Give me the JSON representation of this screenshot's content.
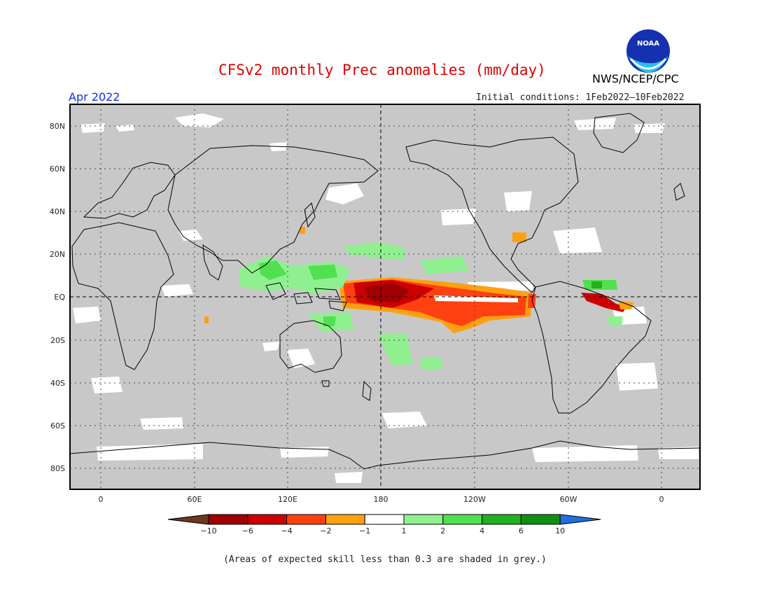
{
  "title": "CFSv2 monthly Prec anomalies (mm/day)",
  "agency": "NWS/NCEP/CPC",
  "logo_text": "NOAA",
  "month": "Apr 2022",
  "initial_conditions": "Initial conditions: 1Feb2022–10Feb2022",
  "footnote": "(Areas of expected skill less than 0.3 are shaded in grey.)",
  "lat_labels": [
    "80N",
    "60N",
    "40N",
    "20N",
    "EQ",
    "20S",
    "40S",
    "60S",
    "80S"
  ],
  "lon_labels": [
    "0",
    "60E",
    "120E",
    "180",
    "120W",
    "60W",
    "0"
  ],
  "colorbar": {
    "labels": [
      "−10",
      "−6",
      "−4",
      "−2",
      "−1",
      "1",
      "2",
      "4",
      "6",
      "10"
    ],
    "colors": [
      "#6b3a1e",
      "#a00000",
      "#cc0000",
      "#ff4010",
      "#ffa010",
      "#ffffff",
      "#90f090",
      "#50e050",
      "#20b020",
      "#109010",
      "#2070e0"
    ]
  },
  "colors": {
    "grey_mask": "#c8c8c8",
    "title": "#e00000",
    "month": "#1030e0"
  }
}
